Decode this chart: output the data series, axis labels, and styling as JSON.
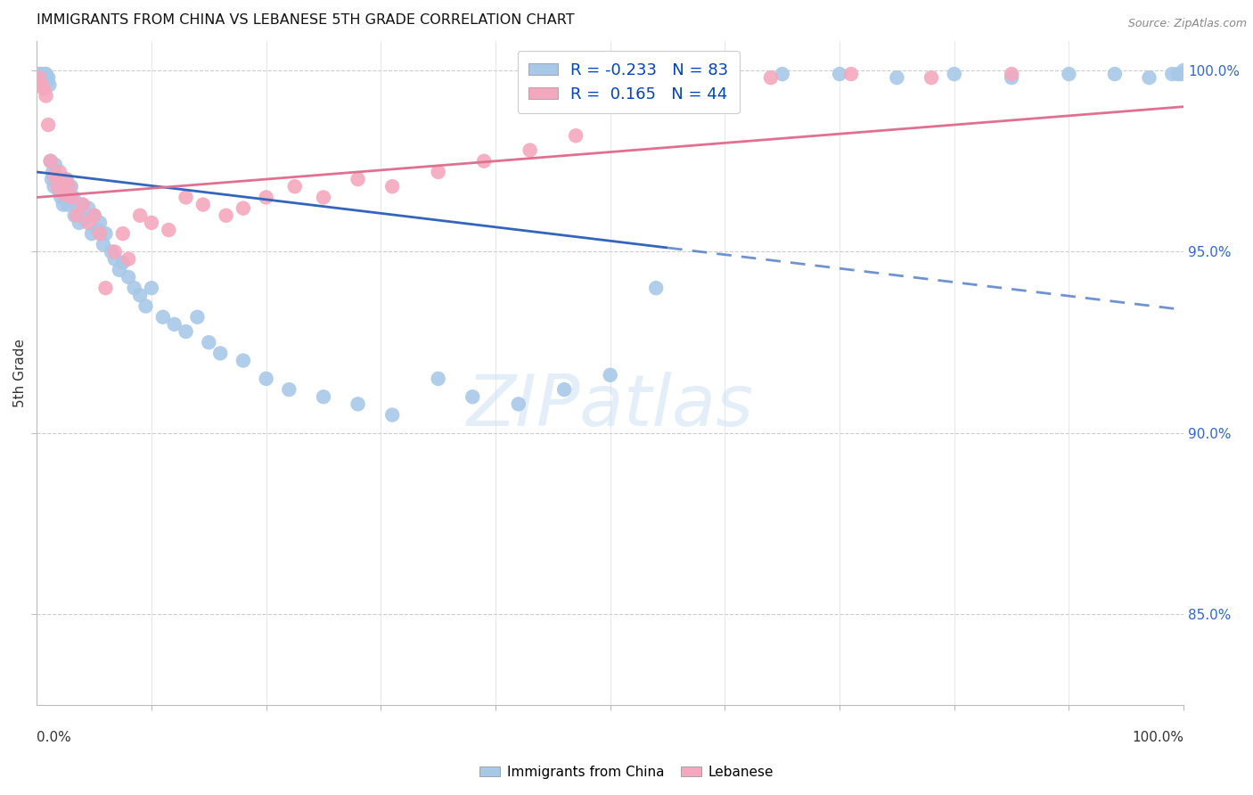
{
  "title": "IMMIGRANTS FROM CHINA VS LEBANESE 5TH GRADE CORRELATION CHART",
  "source": "Source: ZipAtlas.com",
  "ylabel": "5th Grade",
  "legend_china": "Immigrants from China",
  "legend_lebanese": "Lebanese",
  "R_china": -0.233,
  "N_china": 83,
  "R_lebanese": 0.165,
  "N_lebanese": 44,
  "china_color": "#a8c8e8",
  "lebanese_color": "#f4a8be",
  "china_line_color": "#3366bb",
  "lebanese_line_color": "#e07090",
  "china_line_solid_end": 0.55,
  "watermark_text": "ZIPatlas",
  "watermark_color": "#c8dff5",
  "ytick_values": [
    0.85,
    0.9,
    0.95,
    1.0
  ],
  "ytick_labels": [
    "85.0%",
    "90.0%",
    "95.0%",
    "100.0%"
  ],
  "ymin": 0.825,
  "ymax": 1.008,
  "xmin": 0.0,
  "xmax": 1.0,
  "china_line_intercept": 0.972,
  "china_line_slope": -0.038,
  "leb_line_intercept": 0.965,
  "leb_line_slope": 0.025,
  "china_x": [
    0.002,
    0.003,
    0.004,
    0.005,
    0.005,
    0.006,
    0.007,
    0.008,
    0.008,
    0.009,
    0.01,
    0.011,
    0.012,
    0.013,
    0.014,
    0.015,
    0.016,
    0.017,
    0.018,
    0.019,
    0.02,
    0.021,
    0.022,
    0.023,
    0.024,
    0.025,
    0.026,
    0.027,
    0.028,
    0.03,
    0.032,
    0.033,
    0.035,
    0.037,
    0.04,
    0.042,
    0.045,
    0.048,
    0.05,
    0.053,
    0.055,
    0.058,
    0.06,
    0.065,
    0.068,
    0.072,
    0.075,
    0.08,
    0.085,
    0.09,
    0.095,
    0.1,
    0.11,
    0.12,
    0.13,
    0.14,
    0.15,
    0.16,
    0.18,
    0.2,
    0.22,
    0.25,
    0.28,
    0.31,
    0.35,
    0.38,
    0.42,
    0.46,
    0.5,
    0.54,
    0.6,
    0.65,
    0.7,
    0.75,
    0.8,
    0.85,
    0.9,
    0.94,
    0.97,
    0.99,
    0.995,
    0.998,
    1.0
  ],
  "china_y": [
    0.999,
    0.998,
    0.999,
    0.997,
    0.998,
    0.998,
    0.999,
    0.998,
    0.999,
    0.997,
    0.998,
    0.996,
    0.975,
    0.97,
    0.972,
    0.968,
    0.974,
    0.971,
    0.969,
    0.967,
    0.97,
    0.965,
    0.968,
    0.963,
    0.966,
    0.965,
    0.97,
    0.963,
    0.967,
    0.968,
    0.965,
    0.96,
    0.962,
    0.958,
    0.963,
    0.959,
    0.962,
    0.955,
    0.96,
    0.956,
    0.958,
    0.952,
    0.955,
    0.95,
    0.948,
    0.945,
    0.947,
    0.943,
    0.94,
    0.938,
    0.935,
    0.94,
    0.932,
    0.93,
    0.928,
    0.932,
    0.925,
    0.922,
    0.92,
    0.915,
    0.912,
    0.91,
    0.908,
    0.905,
    0.915,
    0.91,
    0.908,
    0.912,
    0.916,
    0.94,
    0.998,
    0.999,
    0.999,
    0.998,
    0.999,
    0.998,
    0.999,
    0.999,
    0.998,
    0.999,
    0.999,
    0.999,
    1.0
  ],
  "leb_x": [
    0.002,
    0.004,
    0.006,
    0.008,
    0.01,
    0.012,
    0.015,
    0.018,
    0.02,
    0.023,
    0.025,
    0.028,
    0.03,
    0.035,
    0.04,
    0.045,
    0.05,
    0.055,
    0.06,
    0.068,
    0.075,
    0.08,
    0.09,
    0.1,
    0.115,
    0.13,
    0.145,
    0.165,
    0.18,
    0.2,
    0.225,
    0.25,
    0.28,
    0.31,
    0.35,
    0.39,
    0.43,
    0.47,
    0.52,
    0.58,
    0.64,
    0.71,
    0.78,
    0.85
  ],
  "leb_y": [
    0.998,
    0.996,
    0.995,
    0.993,
    0.985,
    0.975,
    0.971,
    0.968,
    0.972,
    0.966,
    0.97,
    0.968,
    0.965,
    0.96,
    0.963,
    0.958,
    0.96,
    0.955,
    0.94,
    0.95,
    0.955,
    0.948,
    0.96,
    0.958,
    0.956,
    0.965,
    0.963,
    0.96,
    0.962,
    0.965,
    0.968,
    0.965,
    0.97,
    0.968,
    0.972,
    0.975,
    0.978,
    0.982,
    0.998,
    0.999,
    0.998,
    0.999,
    0.998,
    0.999
  ]
}
